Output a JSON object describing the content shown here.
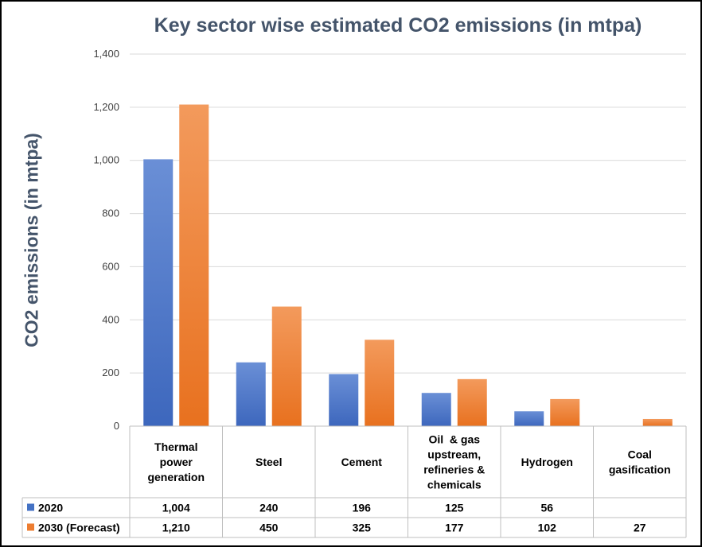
{
  "chart_data": {
    "type": "bar",
    "title": "Key sector wise estimated CO2 emissions (in mtpa)",
    "ylabel": "CO2 emissions (in mtpa)",
    "xlabel": "",
    "ylim": [
      0,
      1400
    ],
    "yticks": [
      "0",
      "200",
      "400",
      "600",
      "800",
      "1,000",
      "1,200",
      "1,400"
    ],
    "categories": [
      [
        "Thermal",
        "power",
        "generation"
      ],
      [
        "Steel"
      ],
      [
        "Cement"
      ],
      [
        "Oil  & gas",
        "upstream,",
        "refineries &",
        "chemicals"
      ],
      [
        "Hydrogen"
      ],
      [
        "Coal",
        "gasification"
      ]
    ],
    "series": [
      {
        "name": "2020",
        "values": [
          1004,
          240,
          196,
          125,
          56,
          null
        ],
        "labels": [
          "1,004",
          "240",
          "196",
          "125",
          "56",
          ""
        ],
        "color": "#4472c4"
      },
      {
        "name": "2030 (Forecast)",
        "values": [
          1210,
          450,
          325,
          177,
          102,
          27
        ],
        "labels": [
          "1,210",
          "450",
          "325",
          "177",
          "102",
          "27"
        ],
        "color": "#ed7d31"
      }
    ],
    "grid": true,
    "legend": "data table"
  }
}
